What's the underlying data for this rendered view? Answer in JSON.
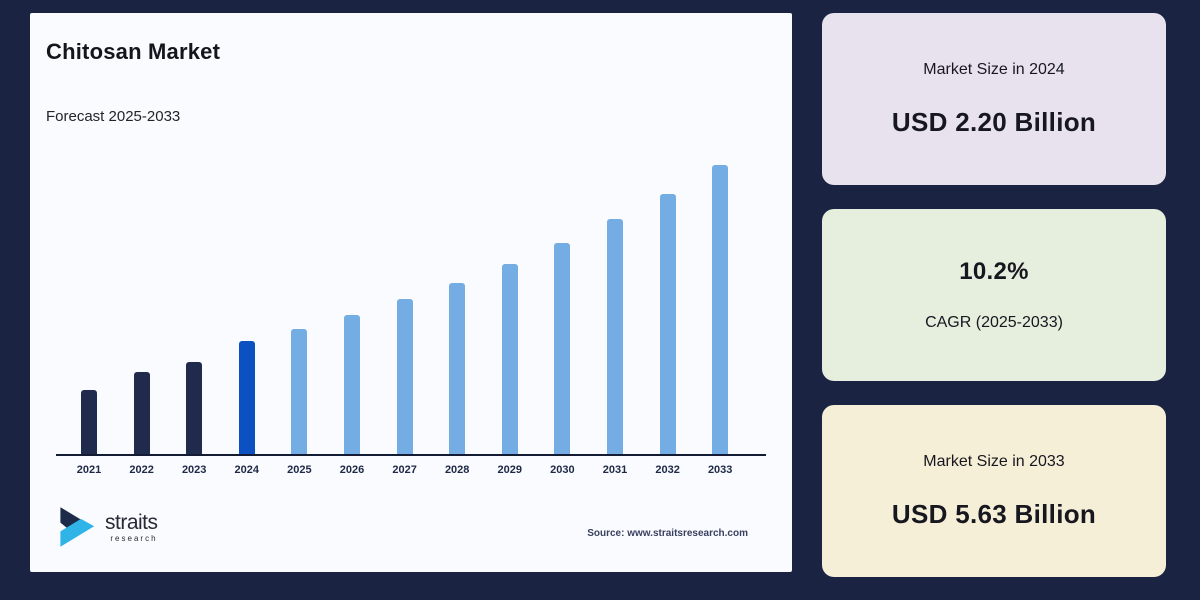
{
  "page": {
    "background_color": "#1a2341",
    "panel_color": "#fafbfe"
  },
  "panel": {
    "title": "Chitosan Market",
    "subtitle": "Forecast 2025-2033",
    "source": "Source: www.straitsresearch.com",
    "logo": {
      "text": "straits",
      "subtext": "research",
      "mark_dark_color": "#1e2a4a",
      "mark_cyan_color": "#30b4e8"
    }
  },
  "chart_data": {
    "type": "bar",
    "title": "Chitosan Market",
    "subtitle": "Forecast 2025-2033",
    "unit": "USD Billion",
    "categories": [
      "2021",
      "2022",
      "2023",
      "2024",
      "2025",
      "2026",
      "2027",
      "2028",
      "2029",
      "2030",
      "2031",
      "2032",
      "2033"
    ],
    "values": [
      1.25,
      1.6,
      1.8,
      2.2,
      2.44,
      2.71,
      3.01,
      3.34,
      3.71,
      4.12,
      4.57,
      5.07,
      5.63
    ],
    "color_roles": [
      "historical",
      "historical",
      "historical",
      "base_year",
      "forecast",
      "forecast",
      "forecast",
      "forecast",
      "forecast",
      "forecast",
      "forecast",
      "forecast",
      "forecast"
    ],
    "bar_colors": {
      "historical": "#1f2a4c",
      "base_year": "#0b51c1",
      "forecast": "#74ace4"
    },
    "xlabel": "",
    "ylabel": "",
    "ylim": [
      0,
      6
    ],
    "grid": false,
    "y_axis_shown": false,
    "legend": null
  },
  "stat_cards": [
    {
      "label": "Market Size in 2024",
      "value": "USD 2.20 Billion",
      "background": "#e8e2ee"
    },
    {
      "value": "10.2%",
      "label": "CAGR (2025-2033)",
      "background": "#e6eedd"
    },
    {
      "label": "Market Size in 2033",
      "value": "USD 5.63 Billion",
      "background": "#f6efd7"
    }
  ]
}
